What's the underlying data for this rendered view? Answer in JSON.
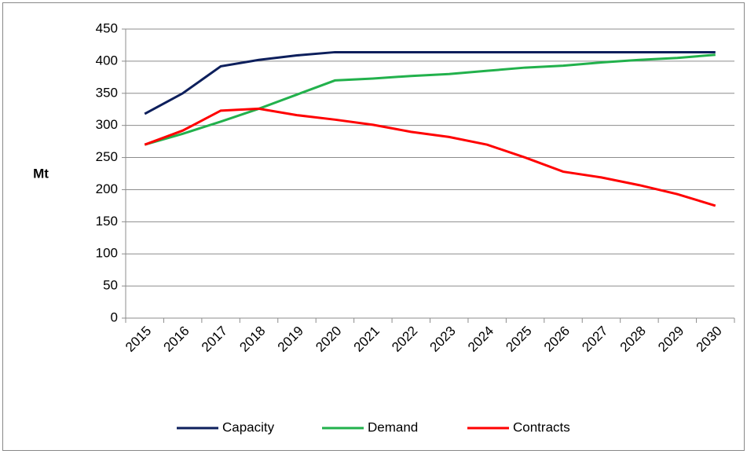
{
  "chart_data": {
    "type": "line",
    "y_label": "Mt",
    "categories": [
      "2015",
      "2016",
      "2017",
      "2018",
      "2019",
      "2020",
      "2021",
      "2022",
      "2023",
      "2024",
      "2025",
      "2026",
      "2027",
      "2028",
      "2029",
      "2030"
    ],
    "series": [
      {
        "name": "Capacity",
        "color": "#0d1f5c",
        "values": [
          318,
          350,
          392,
          402,
          409,
          414,
          414,
          414,
          414,
          414,
          414,
          414,
          414,
          414,
          414,
          414
        ]
      },
      {
        "name": "Demand",
        "color": "#22b14c",
        "values": [
          270,
          287,
          306,
          326,
          348,
          370,
          373,
          377,
          380,
          385,
          390,
          393,
          398,
          402,
          405,
          410
        ]
      },
      {
        "name": "Contracts",
        "color": "#ff0000",
        "values": [
          270,
          292,
          323,
          326,
          316,
          309,
          301,
          290,
          282,
          270,
          250,
          228,
          219,
          207,
          193,
          175
        ]
      }
    ],
    "ylim": [
      0,
      450
    ],
    "yticks": [
      0,
      50,
      100,
      150,
      200,
      250,
      300,
      350,
      400,
      450
    ],
    "grid": true,
    "legend": "bottom"
  }
}
